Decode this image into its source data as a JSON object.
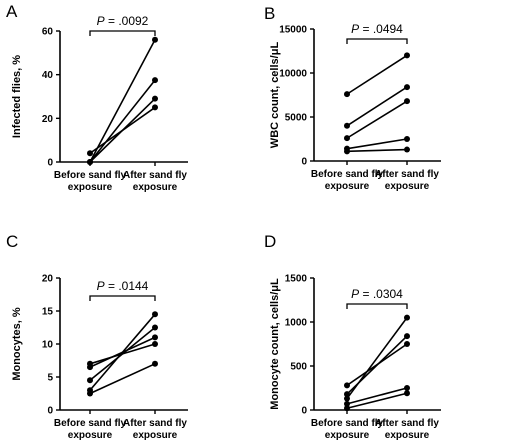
{
  "chart_data": [
    {
      "type": "line",
      "panel_label": "A",
      "ylabel": "Infected flies, %",
      "categories": [
        "Before sand fly exposure",
        "After sand fly exposure"
      ],
      "category_lines": [
        [
          "Before sand fly",
          "exposure"
        ],
        [
          "After sand fly",
          "exposure"
        ]
      ],
      "ylim": [
        0,
        60
      ],
      "yticks": [
        0,
        20,
        40,
        60
      ],
      "ytick_labels": [
        "0",
        "20",
        "40",
        "60"
      ],
      "pvalue": {
        "label": "P",
        "text": " = .0092"
      },
      "series": [
        {
          "values": [
            0,
            56
          ]
        },
        {
          "values": [
            0,
            37.5
          ]
        },
        {
          "values": [
            0,
            29
          ]
        },
        {
          "values": [
            4,
            25
          ]
        }
      ]
    },
    {
      "type": "line",
      "panel_label": "B",
      "ylabel": "WBC count, cells/μL",
      "categories": [
        "Before sand fly exposure",
        "After sand fly exposure"
      ],
      "category_lines": [
        [
          "Before sand fly",
          "exposure"
        ],
        [
          "After sand fly",
          "exposure"
        ]
      ],
      "ylim": [
        0,
        15000
      ],
      "yticks": [
        0,
        5000,
        10000,
        15000
      ],
      "ytick_labels": [
        "0",
        "5000",
        "10000",
        "15000"
      ],
      "pvalue": {
        "label": "P",
        "text": " = .0494"
      },
      "series": [
        {
          "values": [
            7600,
            12000
          ]
        },
        {
          "values": [
            4000,
            8400
          ]
        },
        {
          "values": [
            2600,
            6800
          ]
        },
        {
          "values": [
            1400,
            2500
          ]
        },
        {
          "values": [
            1100,
            1300
          ]
        }
      ]
    },
    {
      "type": "line",
      "panel_label": "C",
      "ylabel": "Monocytes, %",
      "categories": [
        "Before sand fly exposure",
        "After sand fly exposure"
      ],
      "category_lines": [
        [
          "Before sand fly",
          "exposure"
        ],
        [
          "After sand fly",
          "exposure"
        ]
      ],
      "ylim": [
        0,
        20
      ],
      "yticks": [
        0,
        5,
        10,
        15,
        20
      ],
      "ytick_labels": [
        "0",
        "5",
        "10",
        "15",
        "20"
      ],
      "pvalue": {
        "label": "P",
        "text": " = .0144"
      },
      "series": [
        {
          "values": [
            7,
            10
          ]
        },
        {
          "values": [
            6.5,
            11
          ]
        },
        {
          "values": [
            4.5,
            12.5
          ]
        },
        {
          "values": [
            3,
            14.5
          ]
        },
        {
          "values": [
            2.5,
            7
          ]
        }
      ]
    },
    {
      "type": "line",
      "panel_label": "D",
      "ylabel": "Monocyte count, cells/μL",
      "categories": [
        "Before sand fly exposure",
        "After sand fly exposure"
      ],
      "category_lines": [
        [
          "Before sand fly",
          "exposure"
        ],
        [
          "After sand fly",
          "exposure"
        ]
      ],
      "ylim": [
        0,
        1500
      ],
      "yticks": [
        0,
        500,
        1000,
        1500
      ],
      "ytick_labels": [
        "0",
        "500",
        "1000",
        "1500"
      ],
      "pvalue": {
        "label": "P",
        "text": " = .0304"
      },
      "series": [
        {
          "values": [
            280,
            750
          ]
        },
        {
          "values": [
            180,
            840
          ]
        },
        {
          "values": [
            130,
            1050
          ]
        },
        {
          "values": [
            70,
            250
          ]
        },
        {
          "values": [
            20,
            190
          ]
        }
      ]
    }
  ]
}
